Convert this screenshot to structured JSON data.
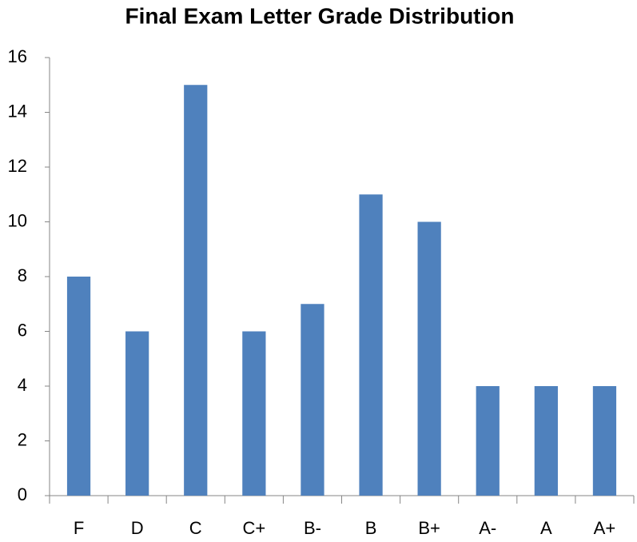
{
  "chart_data": {
    "type": "bar",
    "title": "Final Exam Letter Grade Distribution",
    "categories": [
      "F",
      "D",
      "C",
      "C+",
      "B-",
      "B",
      "B+",
      "A-",
      "A",
      "A+"
    ],
    "values": [
      8,
      6,
      15,
      6,
      7,
      11,
      10,
      4,
      4,
      4
    ],
    "color": "#4f81bd",
    "ylim": [
      0,
      16
    ],
    "yticks": [
      0,
      2,
      4,
      6,
      8,
      10,
      12,
      14,
      16
    ],
    "grid": false
  }
}
